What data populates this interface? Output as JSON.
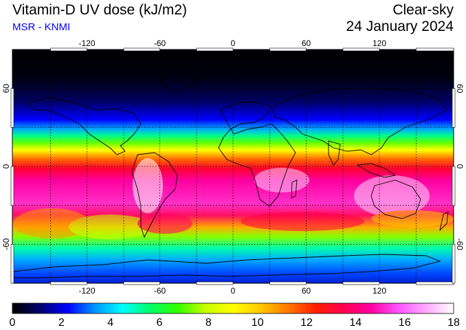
{
  "header": {
    "title": "Vitamin-D UV dose (kJ/m2)",
    "credit": "MSR - KNMI",
    "mode": "Clear-sky",
    "date": "24 January 2024"
  },
  "map": {
    "projection": "equirectangular",
    "lon_range": [
      -180,
      180
    ],
    "lat_range": [
      -90,
      90
    ],
    "lon_ticks": [
      -120,
      -60,
      0,
      60,
      120
    ],
    "lat_ticks": [
      60,
      0,
      -60
    ],
    "lon_tick_labels": [
      "-120",
      "-60",
      "0",
      "60",
      "120"
    ],
    "lat_tick_labels": [
      "60",
      "0",
      "-60"
    ],
    "grid": "dotted every 30 degrees",
    "field_description_zones": [
      {
        "lat_from": 90,
        "lat_to": 60,
        "dose": 0
      },
      {
        "lat_from": 60,
        "lat_to": 35,
        "dose": 2
      },
      {
        "lat_from": 35,
        "lat_to": 20,
        "dose": 8
      },
      {
        "lat_from": 20,
        "lat_to": -25,
        "dose": 15
      },
      {
        "lat_from": -25,
        "lat_to": -50,
        "dose": 12
      },
      {
        "lat_from": -50,
        "lat_to": -75,
        "dose": 6
      },
      {
        "lat_from": -75,
        "lat_to": -90,
        "dose": 4
      }
    ]
  },
  "colorbar": {
    "min": 0,
    "max": 18,
    "tick_labels": [
      "0",
      "2",
      "4",
      "6",
      "8",
      "10",
      "12",
      "14",
      "16",
      "18"
    ],
    "colors": [
      "#000000",
      "#00006e",
      "#0000ff",
      "#0096ff",
      "#00ffff",
      "#00ff66",
      "#33ff00",
      "#c8ff00",
      "#ffff00",
      "#ffc800",
      "#ff7800",
      "#ff1e00",
      "#ff0050",
      "#ff00a0",
      "#ff55ff",
      "#ffaaff",
      "#ffffff"
    ]
  }
}
